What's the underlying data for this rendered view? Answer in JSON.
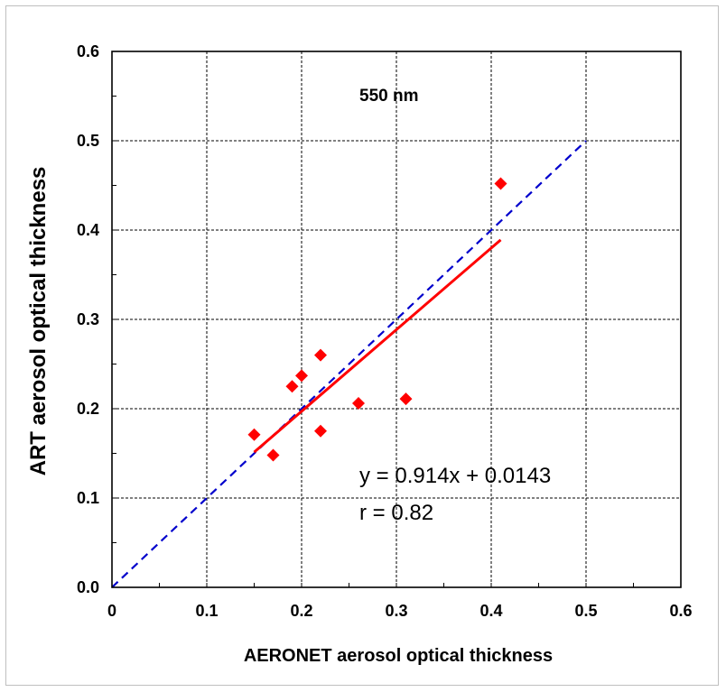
{
  "chart_data": {
    "type": "scatter",
    "title": "550 nm",
    "xlabel": "AERONET aerosol optical thickness",
    "ylabel": "ART aerosol optical thickness",
    "xlim": [
      0,
      0.6
    ],
    "ylim": [
      0,
      0.6
    ],
    "x_tick_labels": [
      "0",
      "0.1",
      "0.2",
      "0.3",
      "0.4",
      "0.5",
      "0.6"
    ],
    "y_tick_labels": [
      "0.0",
      "0.1",
      "0.2",
      "0.3",
      "0.4",
      "0.5",
      "0.6"
    ],
    "x_ticks": [
      0,
      0.1,
      0.2,
      0.3,
      0.4,
      0.5,
      0.6
    ],
    "y_ticks": [
      0,
      0.1,
      0.2,
      0.3,
      0.4,
      0.5,
      0.6
    ],
    "grid": true,
    "points": [
      {
        "x": 0.15,
        "y": 0.171
      },
      {
        "x": 0.17,
        "y": 0.148
      },
      {
        "x": 0.19,
        "y": 0.225
      },
      {
        "x": 0.2,
        "y": 0.237
      },
      {
        "x": 0.22,
        "y": 0.26
      },
      {
        "x": 0.22,
        "y": 0.175
      },
      {
        "x": 0.26,
        "y": 0.206
      },
      {
        "x": 0.31,
        "y": 0.211
      },
      {
        "x": 0.41,
        "y": 0.452
      }
    ],
    "regression_line": {
      "slope": 0.914,
      "intercept": 0.0143,
      "x_range": [
        0.15,
        0.41
      ]
    },
    "one_to_one_line": {
      "x_range": [
        0,
        0.5
      ]
    },
    "equation": "y = 0.914x + 0.0143",
    "r_text": "r = 0.82",
    "colors": {
      "points": "#ff0000",
      "regression": "#ff0000",
      "one_to_one": "#0000cc"
    }
  }
}
